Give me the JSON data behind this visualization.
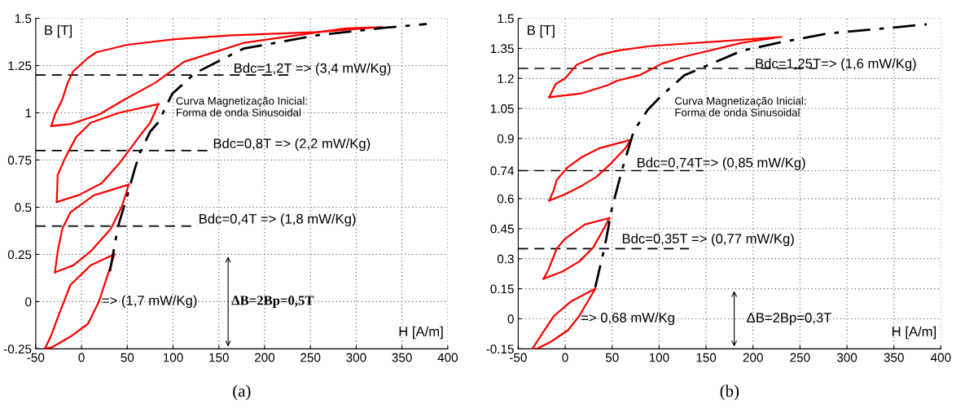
{
  "chart_data": [
    {
      "type": "line",
      "title": "(a)",
      "xlabel": "H [A/m]",
      "ylabel": "B [T]",
      "xlim": [
        -50,
        400
      ],
      "ylim": [
        -0.25,
        1.5
      ],
      "xticks": [
        -50,
        0,
        50,
        100,
        150,
        200,
        250,
        300,
        350,
        400
      ],
      "yticks": [
        -0.25,
        0,
        0.25,
        0.5,
        0.75,
        1,
        1.25,
        1.5
      ],
      "grid": true,
      "marker": "none",
      "series": [
        {
          "color": "#ff0000",
          "line_style": "solid",
          "x": [
            328,
            257,
            164,
            102,
            50,
            16,
            7,
            -9,
            -15,
            -21,
            -29,
            -33
          ],
          "values": [
            1.454,
            1.427,
            1.41,
            1.39,
            1.36,
            1.32,
            1.29,
            1.22,
            1.16,
            1.07,
            0.99,
            0.93
          ]
        },
        {
          "color": "#ff0000",
          "line_style": "solid",
          "x": [
            -33,
            -12,
            19,
            47,
            81,
            112,
            177,
            288,
            318
          ],
          "values": [
            0.93,
            0.94,
            0.99,
            1.07,
            1.16,
            1.27,
            1.37,
            1.447,
            1.452
          ]
        },
        {
          "color": "#ff0000",
          "line_style": "solid",
          "x": [
            84,
            41,
            10,
            -6,
            -18,
            -26,
            -27
          ],
          "values": [
            1.046,
            1.0,
            0.947,
            0.87,
            0.76,
            0.67,
            0.527
          ]
        },
        {
          "color": "#ff0000",
          "line_style": "solid",
          "x": [
            -27,
            -2.5,
            22,
            41,
            65,
            75,
            84
          ],
          "values": [
            0.527,
            0.565,
            0.627,
            0.73,
            0.886,
            0.947,
            1.046
          ]
        },
        {
          "color": "#ff0000",
          "line_style": "solid",
          "x": [
            51.5,
            25,
            13,
            -12,
            -21,
            -26,
            -29
          ],
          "values": [
            0.62,
            0.58,
            0.562,
            0.473,
            0.385,
            0.266,
            0.155
          ]
        },
        {
          "color": "#ff0000",
          "line_style": "solid",
          "x": [
            -29,
            -9,
            10,
            32,
            44,
            48,
            51.5
          ],
          "values": [
            0.155,
            0.192,
            0.266,
            0.385,
            0.503,
            0.562,
            0.62
          ]
        },
        {
          "color": "#ff0000",
          "line_style": "solid",
          "x": [
            36,
            10,
            -12,
            -24,
            -33,
            -40
          ],
          "values": [
            0.251,
            0.192,
            0.089,
            -0.059,
            -0.178,
            -0.249
          ]
        },
        {
          "color": "#ff0000",
          "line_style": "solid",
          "x": [
            -40,
            -33,
            -12,
            7,
            19,
            28,
            36
          ],
          "values": [
            -0.249,
            -0.244,
            -0.185,
            -0.118,
            0.0,
            0.133,
            0.251
          ]
        },
        {
          "color": "#000000",
          "line_style": "dashdot",
          "x": [
            31,
            40,
            50,
            58,
            64,
            75,
            84,
            99,
            124,
            177,
            257,
            330,
            377
          ],
          "values": [
            0.16,
            0.4,
            0.56,
            0.7,
            0.79,
            0.9,
            0.95,
            1.1,
            1.21,
            1.34,
            1.41,
            1.45,
            1.47
          ]
        }
      ],
      "ref_lines": [
        {
          "axis": "y",
          "value": 1.2,
          "color": "#000000",
          "line_style": "dashed"
        },
        {
          "axis": "y",
          "value": 0.8,
          "color": "#000000",
          "line_style": "dashed"
        },
        {
          "axis": "y",
          "value": 0.4,
          "color": "#000000",
          "line_style": "dashed"
        }
      ],
      "annotations": [
        "Bdc=1,2T => (3,4 mW/Kg)",
        "Curva Magnetização Inicial:\nForma de onda Sinusoidal",
        "Bdc=0,8T => (2,2 mW/Kg)",
        "Bdc=0,4T => (1,8 mW/Kg)",
        "=> (1,7 mW/Kg)",
        "ΔB=2Bp=0,5T"
      ]
    },
    {
      "type": "line",
      "title": "(b)",
      "xlabel": "H [A/m]",
      "ylabel": "B [T]",
      "xlim": [
        -50,
        400
      ],
      "ylim": [
        -0.15,
        1.5
      ],
      "xticks": [
        -50,
        0,
        50,
        100,
        150,
        200,
        250,
        300,
        350,
        400
      ],
      "yticks": [
        -0.15,
        0,
        0.15,
        0.3,
        0.45,
        0.6,
        0.74,
        0.9,
        1.05,
        1.2,
        1.35,
        1.5
      ],
      "grid": true,
      "marker": "none",
      "series": [
        {
          "color": "#ff0000",
          "line_style": "solid",
          "x": [
            230,
            188,
            91,
            55,
            36,
            12,
            0,
            -10,
            -17
          ],
          "values": [
            1.407,
            1.393,
            1.362,
            1.338,
            1.317,
            1.267,
            1.2,
            1.173,
            1.106
          ]
        },
        {
          "color": "#ff0000",
          "line_style": "solid",
          "x": [
            -17,
            18,
            45,
            55,
            79,
            103,
            127,
            188,
            222
          ],
          "values": [
            1.106,
            1.126,
            1.166,
            1.188,
            1.216,
            1.274,
            1.309,
            1.378,
            1.402
          ]
        },
        {
          "color": "#ff0000",
          "line_style": "solid",
          "x": [
            70,
            36,
            18,
            3,
            -9,
            -12,
            -17
          ],
          "values": [
            0.894,
            0.851,
            0.808,
            0.758,
            0.693,
            0.643,
            0.59
          ]
        },
        {
          "color": "#ff0000",
          "line_style": "solid",
          "x": [
            -17,
            0,
            18,
            33,
            48,
            64,
            70
          ],
          "values": [
            0.59,
            0.622,
            0.665,
            0.708,
            0.772,
            0.851,
            0.894
          ]
        },
        {
          "color": "#ff0000",
          "line_style": "solid",
          "x": [
            47,
            21,
            0,
            -9,
            -18,
            -23
          ],
          "values": [
            0.503,
            0.471,
            0.4,
            0.35,
            0.243,
            0.2
          ]
        },
        {
          "color": "#ff0000",
          "line_style": "solid",
          "x": [
            -23,
            -3,
            15,
            30,
            42,
            47
          ],
          "values": [
            0.2,
            0.236,
            0.286,
            0.357,
            0.457,
            0.503
          ]
        },
        {
          "color": "#ff0000",
          "line_style": "solid",
          "x": [
            32,
            6,
            -12,
            -24,
            -35
          ],
          "values": [
            0.15,
            0.086,
            0.014,
            -0.071,
            -0.15
          ]
        },
        {
          "color": "#ff0000",
          "line_style": "solid",
          "x": [
            -35,
            -30,
            -15,
            3,
            15,
            24,
            32
          ],
          "values": [
            -0.15,
            -0.15,
            -0.114,
            -0.057,
            0.014,
            0.086,
            0.15
          ]
        },
        {
          "color": "#000000",
          "line_style": "dashdot",
          "x": [
            32,
            42,
            50,
            61,
            73,
            88,
            103,
            127,
            152,
            188,
            230,
            279,
            385
          ],
          "values": [
            0.157,
            0.357,
            0.557,
            0.751,
            0.937,
            1.044,
            1.116,
            1.216,
            1.266,
            1.338,
            1.381,
            1.424,
            1.47
          ]
        }
      ],
      "ref_lines": [
        {
          "axis": "y",
          "value": 1.25,
          "color": "#000000",
          "line_style": "dashed"
        },
        {
          "axis": "y",
          "value": 0.74,
          "color": "#000000",
          "line_style": "dashed"
        },
        {
          "axis": "y",
          "value": 0.35,
          "color": "#000000",
          "line_style": "dashed"
        }
      ],
      "annotations": [
        "Bdc=1,25T=> (1,6 mW/Kg)",
        "Curva Magnetização Inicial:\nForma de onda Sinusoidal",
        "Bdc=0,74T=> (0,85 mW/Kg)",
        "Bdc=0,35T => (0,77 mW/Kg)",
        "=> 0,68 mW/Kg",
        "ΔB=2Bp=0,3T"
      ]
    }
  ]
}
